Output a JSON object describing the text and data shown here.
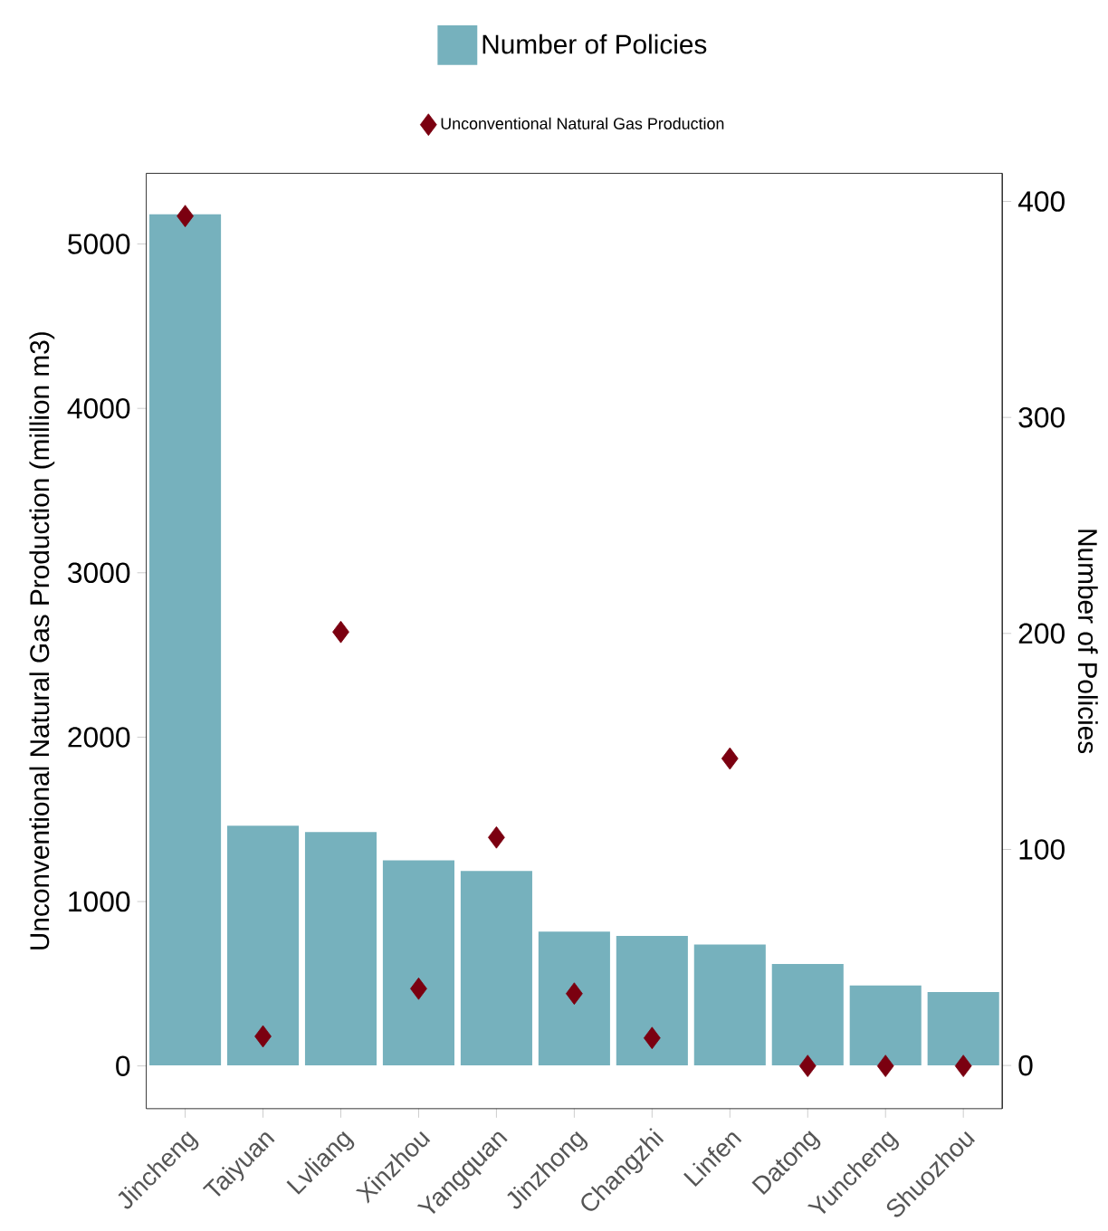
{
  "chart_data": {
    "type": "bar",
    "categories": [
      "Jincheng",
      "Taiyuan",
      "Lvliang",
      "Xinzhou",
      "Yangquan",
      "Jinzhong",
      "Changzhi",
      "Linfen",
      "Datong",
      "Yuncheng",
      "Shuozhou"
    ],
    "ylabel": "Unconventional Natural Gas Production (million m3)",
    "y2label": "Number of Policies",
    "legend": "top",
    "ylim": [
      -260,
      5430
    ],
    "yticks": [
      0,
      1000,
      2000,
      3000,
      4000,
      5000
    ],
    "y2lim": [
      -20,
      413
    ],
    "y2ticks": [
      0,
      100,
      200,
      300,
      400
    ],
    "series": [
      {
        "name": "Number of Policies",
        "axis": "y2",
        "color": "#76b1bd",
        "values": [
          394,
          111,
          108,
          95,
          90,
          62,
          60,
          56,
          47,
          37,
          34
        ]
      },
      {
        "name": "Unconventional Natural Gas Production",
        "type": "scatter",
        "marker": "diamond",
        "color": "#7b0010",
        "values": [
          5170,
          180,
          2640,
          470,
          1390,
          440,
          170,
          1870,
          0,
          0,
          0
        ]
      }
    ]
  }
}
